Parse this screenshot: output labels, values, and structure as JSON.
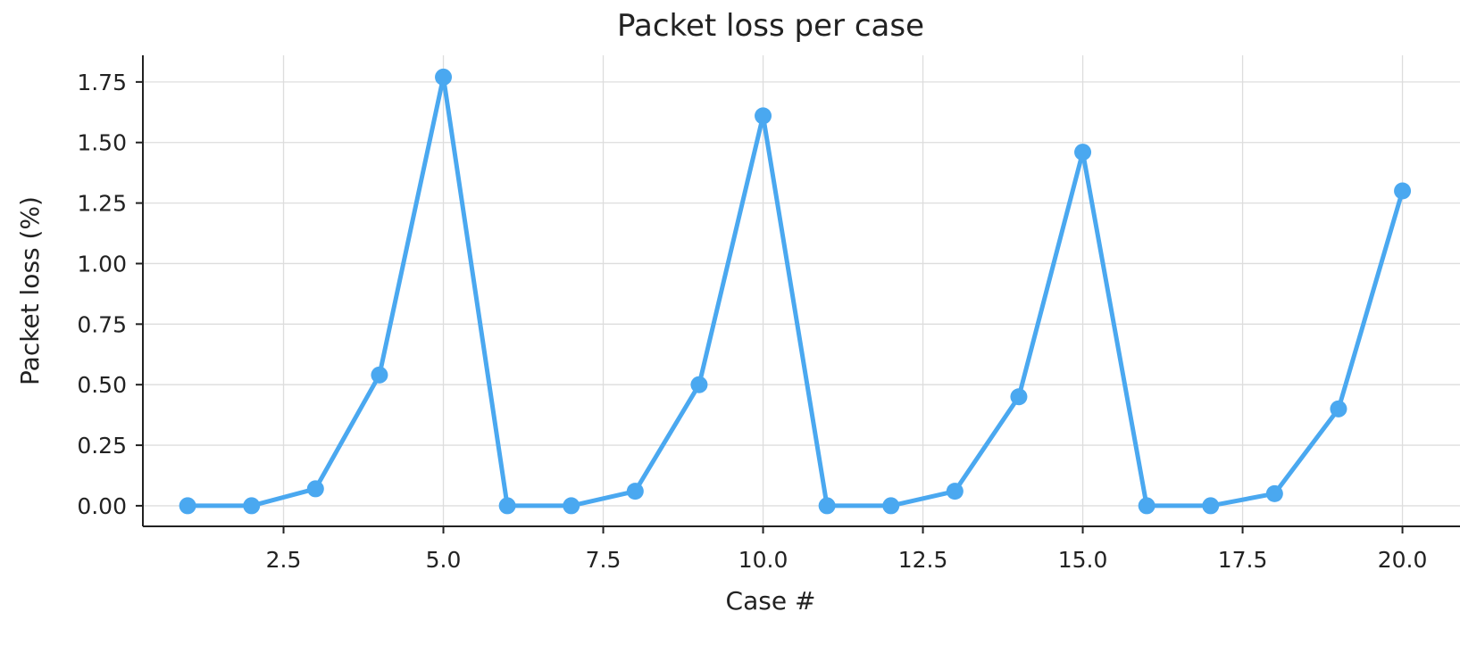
{
  "chart_data": {
    "type": "line",
    "title": "Packet loss per case",
    "xlabel": "Case #",
    "ylabel": "Packet loss (%)",
    "xlim": [
      0.3,
      20.9
    ],
    "ylim": [
      -0.085,
      1.86
    ],
    "xticks": [
      2.5,
      5.0,
      7.5,
      10.0,
      12.5,
      15.0,
      17.5,
      20.0
    ],
    "xtick_labels": [
      "2.5",
      "5.0",
      "7.5",
      "10.0",
      "12.5",
      "15.0",
      "17.5",
      "20.0"
    ],
    "yticks": [
      0.0,
      0.25,
      0.5,
      0.75,
      1.0,
      1.25,
      1.5,
      1.75
    ],
    "ytick_labels": [
      "0.00",
      "0.25",
      "0.50",
      "0.75",
      "1.00",
      "1.25",
      "1.50",
      "1.75"
    ],
    "grid": true,
    "series": [
      {
        "color": "#4aa8f0",
        "marker": "circle",
        "x": [
          1,
          2,
          3,
          4,
          5,
          6,
          7,
          8,
          9,
          10,
          11,
          12,
          13,
          14,
          15,
          16,
          17,
          18,
          19,
          20
        ],
        "y": [
          0.0,
          0.0,
          0.07,
          0.54,
          1.77,
          0.0,
          0.0,
          0.06,
          0.5,
          1.61,
          0.0,
          0.0,
          0.06,
          0.45,
          1.46,
          0.0,
          0.0,
          0.05,
          0.4,
          1.3
        ]
      }
    ]
  }
}
